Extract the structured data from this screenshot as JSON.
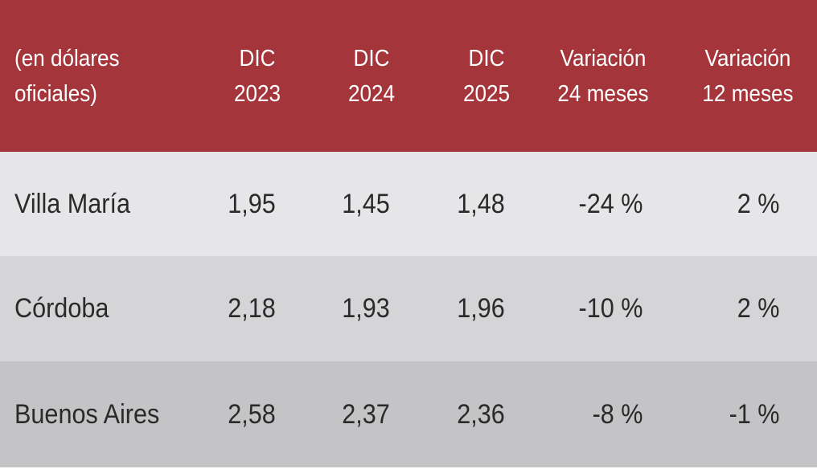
{
  "chart_data": {
    "type": "table",
    "header_color": "#a4353a",
    "columns": [
      {
        "line1": "(en dólares",
        "line2": "oficiales)"
      },
      {
        "line1": "DIC",
        "line2": "2023"
      },
      {
        "line1": "DIC",
        "line2": "2024"
      },
      {
        "line1": "DIC",
        "line2": "2025"
      },
      {
        "line1": "Variación",
        "line2": "24 meses"
      },
      {
        "line1": "Variación",
        "line2": "12 meses"
      }
    ],
    "rows": [
      [
        "Villa María",
        "1,95",
        "1,45",
        "1,48",
        "-24 %",
        "2 %"
      ],
      [
        "Córdoba",
        "2,18",
        "1,93",
        "1,96",
        "-10 %",
        "2 %"
      ],
      [
        "Buenos Aires",
        "2,58",
        "2,37",
        "2,36",
        "-8 %",
        "-1 %"
      ]
    ]
  }
}
